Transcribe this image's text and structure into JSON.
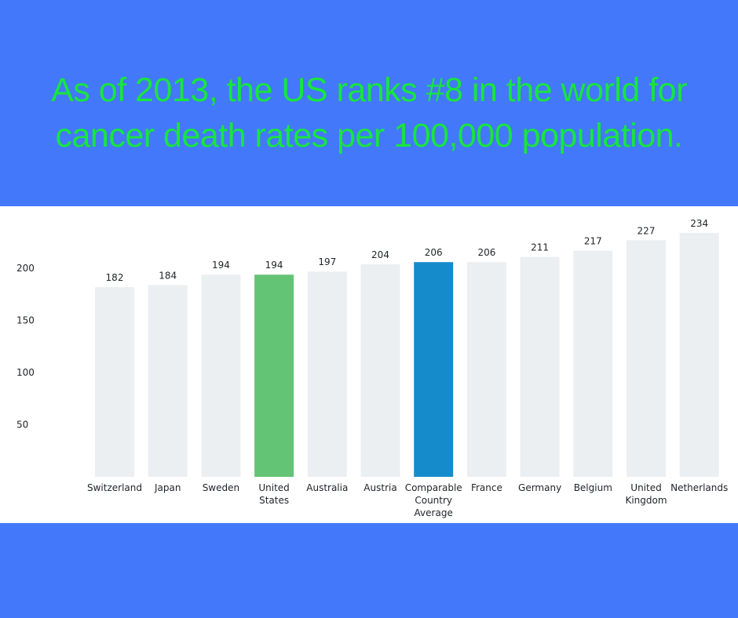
{
  "headline": {
    "line1": "As of 2013, the US ranks #8 in the world for",
    "line2": "cancer death rates per 100,000 population."
  },
  "colors": {
    "background": "#4378fb",
    "headline": "#17e63d",
    "bar_default": "#ebeff2",
    "bar_highlight_us": "#63c476",
    "bar_highlight_avg": "#168bcb"
  },
  "chart_data": {
    "type": "bar",
    "categories": [
      [
        "Switzerland"
      ],
      [
        "Japan"
      ],
      [
        "Sweden"
      ],
      [
        "United",
        "States"
      ],
      [
        "Australia"
      ],
      [
        "Austria"
      ],
      [
        "Comparable",
        "Country",
        "Average"
      ],
      [
        "France"
      ],
      [
        "Germany"
      ],
      [
        "Belgium"
      ],
      [
        "United",
        "Kingdom"
      ],
      [
        "Netherlands"
      ]
    ],
    "values": [
      182,
      184,
      194,
      194,
      197,
      204,
      206,
      206,
      211,
      217,
      227,
      234
    ],
    "highlight": {
      "3": "#63c476",
      "6": "#168bcb"
    },
    "yticks": [
      50,
      100,
      150,
      200
    ],
    "ylim": [
      0,
      234
    ],
    "grid": false,
    "data_labels": true
  }
}
